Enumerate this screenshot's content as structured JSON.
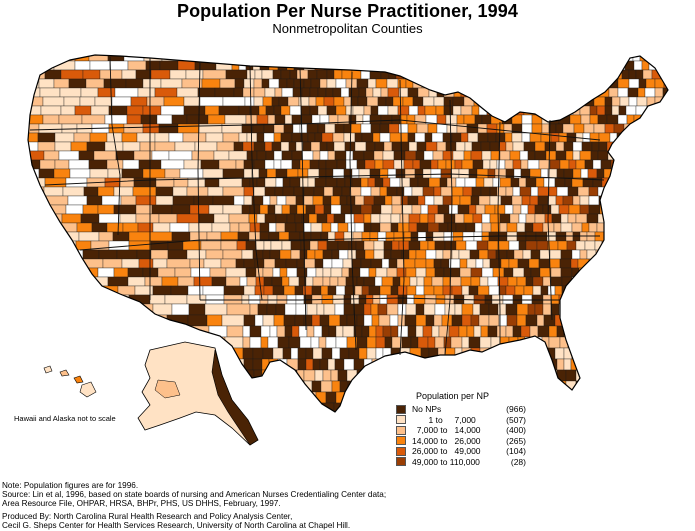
{
  "title": "Population Per Nurse Practitioner, 1994",
  "subtitle": "Nonmetropolitan Counties",
  "scale_note": "Hawaii and Alaska not to scale",
  "legend": {
    "title": "Population per NP",
    "items": [
      {
        "label": "No NPs",
        "count": "(966)",
        "color": "#4a2305"
      },
      {
        "label": "       1 to     7,000",
        "count": "(507)",
        "color": "#ffe2c4"
      },
      {
        "label": "  7,000 to   14,000",
        "count": "(400)",
        "color": "#fdc08b"
      },
      {
        "label": "14,000 to   26,000",
        "count": "(265)",
        "color": "#f9830f"
      },
      {
        "label": "26,000 to   49,000",
        "count": "(104)",
        "color": "#d95a0a"
      },
      {
        "label": "49,000 to 110,000",
        "count": "  (28)",
        "color": "#9a3e04"
      }
    ]
  },
  "notes": {
    "line1": "Note:  Population figures are for 1996.",
    "line2": "Source:  Lin et al, 1996, based on state boards of nursing and American Nurses Credentialing Center data;",
    "line3": "Area Resource File, OHPAR, HRSA, BHPr, PHS, US DHHS,  February, 1997.",
    "line4": "Produced By:  North Carolina Rural Health Research and Policy Analysis Center,",
    "line5": "Cecil G. Sheps Center for Health Services Research, University of North Carolina at Chapel Hill."
  },
  "colors": {
    "metro_fill": "#ffffff",
    "outline": "#000000",
    "state_border": "#222222"
  }
}
